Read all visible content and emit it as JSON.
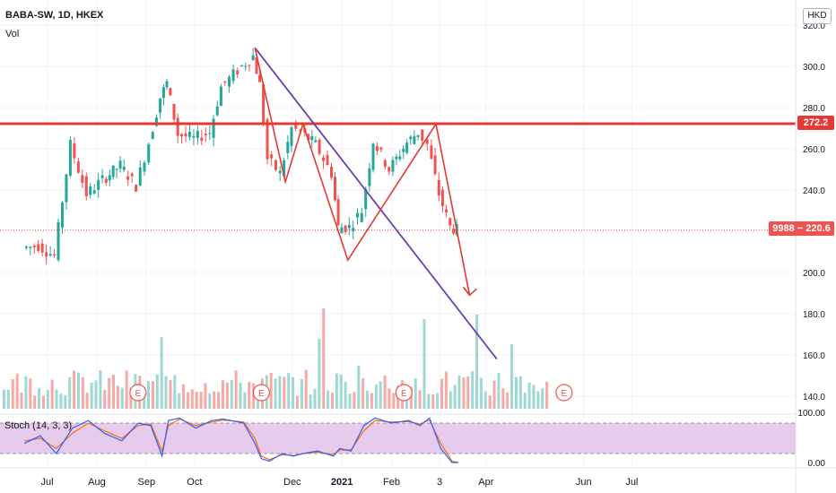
{
  "header": {
    "symbol_line": "BABA-SW, 1D, HKEX",
    "volume_label": "Vol",
    "stoch_label": "Stoch (14, 3, 3)",
    "currency": "HKD"
  },
  "price_axis": {
    "ticks": [
      "320.0",
      "300.0",
      "280.0",
      "260.0",
      "240.0",
      "220.0",
      "200.0",
      "180.0",
      "160.0",
      "140.0"
    ]
  },
  "stoch_axis": {
    "ticks": [
      "100.00",
      "0.00"
    ]
  },
  "time_axis": {
    "ticks": [
      "Jul",
      "Aug",
      "Sep",
      "Oct",
      "Dec",
      "2021",
      "Feb",
      "3",
      "Apr",
      "Jun",
      "Jul"
    ]
  },
  "tags": {
    "resistance": "272.2",
    "last_price": "9988 − 220.6"
  },
  "earnings_marker": "E",
  "colors": {
    "up": "#26a69a",
    "down": "#ef5350",
    "resistance": "#e53935",
    "trend": "#6a3fb5",
    "stoch_fill": "#e1bee7"
  },
  "chart_data": {
    "type": "candlestick",
    "symbol": "BABA-SW",
    "interval": "1D",
    "exchange": "HKEX",
    "ylim": [
      135,
      322
    ],
    "resistance_level": 272.2,
    "last_price": 220.6,
    "price_path": [
      {
        "date": "2020-06-10",
        "close": 212
      },
      {
        "date": "2020-06-20",
        "close": 213
      },
      {
        "date": "2020-06-30",
        "close": 208
      },
      {
        "date": "2020-07-10",
        "close": 262
      },
      {
        "date": "2020-07-20",
        "close": 238
      },
      {
        "date": "2020-07-30",
        "close": 245
      },
      {
        "date": "2020-08-10",
        "close": 252
      },
      {
        "date": "2020-08-20",
        "close": 242
      },
      {
        "date": "2020-08-28",
        "close": 263
      },
      {
        "date": "2020-09-04",
        "close": 285
      },
      {
        "date": "2020-09-08",
        "close": 292
      },
      {
        "date": "2020-09-15",
        "close": 267
      },
      {
        "date": "2020-09-25",
        "close": 265
      },
      {
        "date": "2020-10-05",
        "close": 268
      },
      {
        "date": "2020-10-12",
        "close": 290
      },
      {
        "date": "2020-10-25",
        "close": 300
      },
      {
        "date": "2020-11-01",
        "close": 305
      },
      {
        "date": "2020-11-05",
        "close": 291
      },
      {
        "date": "2020-11-10",
        "close": 255
      },
      {
        "date": "2020-11-18",
        "close": 248
      },
      {
        "date": "2020-11-25",
        "close": 270
      },
      {
        "date": "2020-12-01",
        "close": 268
      },
      {
        "date": "2020-12-10",
        "close": 262
      },
      {
        "date": "2020-12-20",
        "close": 248
      },
      {
        "date": "2020-12-24",
        "close": 222
      },
      {
        "date": "2020-12-31",
        "close": 222
      },
      {
        "date": "2021-01-08",
        "close": 230
      },
      {
        "date": "2021-01-15",
        "close": 264
      },
      {
        "date": "2021-01-25",
        "close": 250
      },
      {
        "date": "2021-02-05",
        "close": 263
      },
      {
        "date": "2021-02-12",
        "close": 268
      },
      {
        "date": "2021-02-18",
        "close": 262
      },
      {
        "date": "2021-02-25",
        "close": 238
      },
      {
        "date": "2021-03-04",
        "close": 222
      },
      {
        "date": "2021-03-08",
        "close": 220.6
      }
    ],
    "pattern_zigzag": [
      {
        "date": "2020-11-01",
        "price": 309
      },
      {
        "date": "2020-11-20",
        "price": 244
      },
      {
        "date": "2020-12-01",
        "price": 272
      },
      {
        "date": "2020-12-29",
        "price": 206
      },
      {
        "date": "2021-02-22",
        "price": 272
      },
      {
        "date": "2021-03-15",
        "price": 189
      }
    ],
    "trendline": [
      {
        "date": "2020-11-01",
        "price": 309
      },
      {
        "date": "2021-04-01",
        "price": 158
      }
    ],
    "volume_bar_count": 125,
    "earnings_dates": [
      "2020-08-20",
      "2020-11-05",
      "2021-02-02",
      "2021-05-13"
    ],
    "stochastic": {
      "params": [
        14,
        3,
        3
      ],
      "ylim": [
        0,
        100
      ],
      "bands": [
        20,
        80
      ],
      "k": [
        40,
        55,
        20,
        70,
        85,
        60,
        45,
        80,
        75,
        15,
        85,
        90,
        70,
        85,
        88,
        80,
        40,
        10,
        5,
        20,
        15,
        20,
        25,
        15,
        30,
        25,
        75,
        90,
        80,
        85,
        75,
        90,
        30,
        2,
        0
      ],
      "d": [
        45,
        50,
        30,
        60,
        80,
        65,
        50,
        75,
        78,
        25,
        75,
        88,
        75,
        82,
        86,
        82,
        50,
        15,
        8,
        18,
        16,
        20,
        23,
        18,
        27,
        27,
        65,
        85,
        82,
        83,
        78,
        86,
        40,
        5,
        1
      ]
    }
  }
}
